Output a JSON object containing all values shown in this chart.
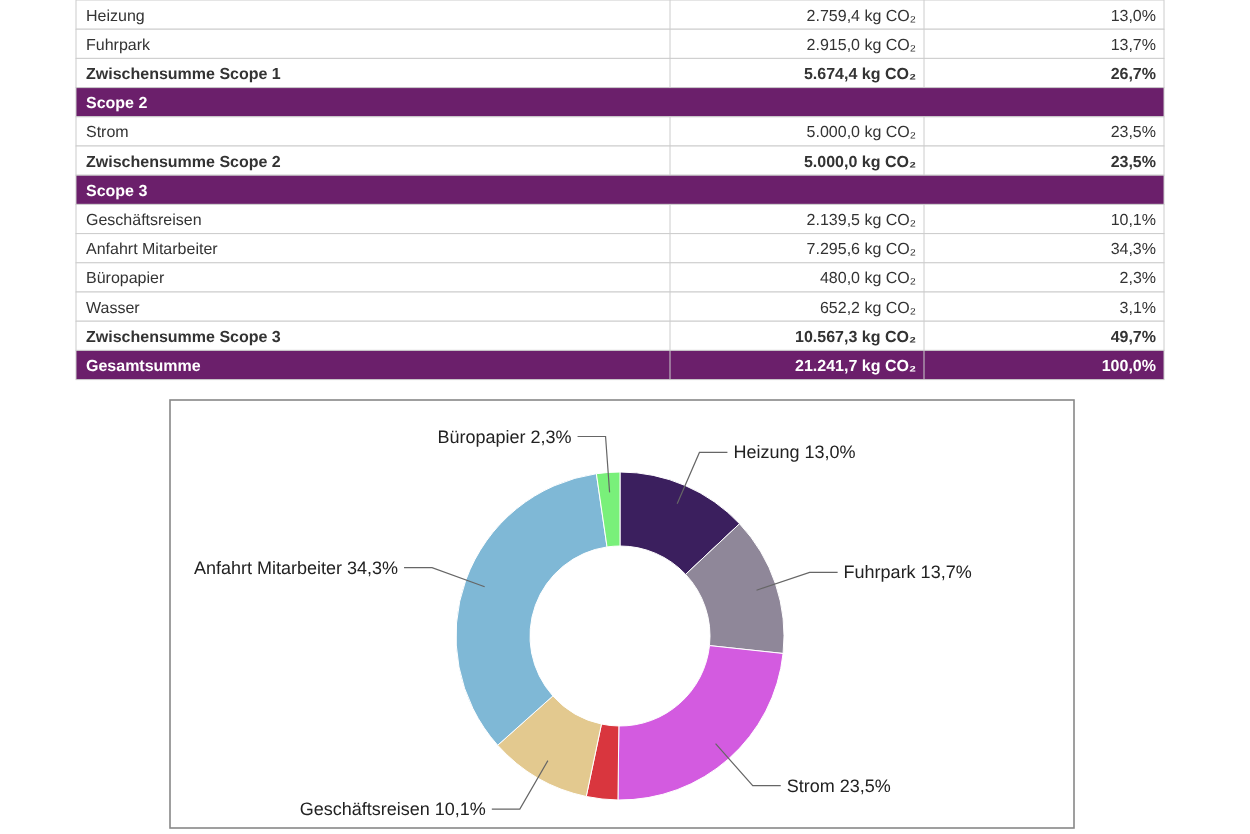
{
  "chart_data": [
    {
      "type": "other",
      "annotations": [
        "Heizung",
        "2.759,4 kg CO₂",
        "13,0%",
        "Fuhrpark",
        "2.915,0 kg CO₂",
        "13,7%",
        "Zwischensumme Scope 1",
        "5.674,4 kg CO₂",
        "26,7%",
        "Scope 2",
        "Strom",
        "5.000,0 kg CO₂",
        "23,5%",
        "Zwischensumme Scope 2",
        "5.000,0 kg CO₂",
        "23,5%",
        "Scope 3",
        "Geschäftsreisen",
        "2.139,5 kg CO₂",
        "10,1%",
        "Anfahrt Mitarbeiter",
        "7.295,6 kg CO₂",
        "34,3%",
        "Büropapier",
        "480,0 kg CO₂",
        "2,3%",
        "Wasser",
        "652,2 kg CO₂",
        "3,1%",
        "Zwischensumme Scope 3",
        "10.567,3 kg CO₂",
        "49,7%",
        "Gesamtsumme",
        "21.241,7 kg CO₂",
        "100,0%"
      ]
    },
    {
      "type": "donut",
      "categories": [
        "Heizung",
        "Fuhrpark",
        "Strom",
        null,
        "Geschäftsreisen",
        "Anfahrt Mitarbeiter",
        "Büropapier"
      ],
      "values": [
        13.0,
        13.7,
        23.5,
        3.1,
        10.1,
        34.3,
        2.3
      ],
      "value_labels": [
        "13,0%",
        "13,7%",
        "23,5%",
        null,
        "10,1%",
        "34,3%",
        "2,3%"
      ],
      "colors": [
        "#3b1f5e",
        "#8f8799",
        "#d35be0",
        "#d9363e",
        "#e3c98f",
        "#7fb8d6",
        "#79f07a"
      ]
    }
  ]
}
